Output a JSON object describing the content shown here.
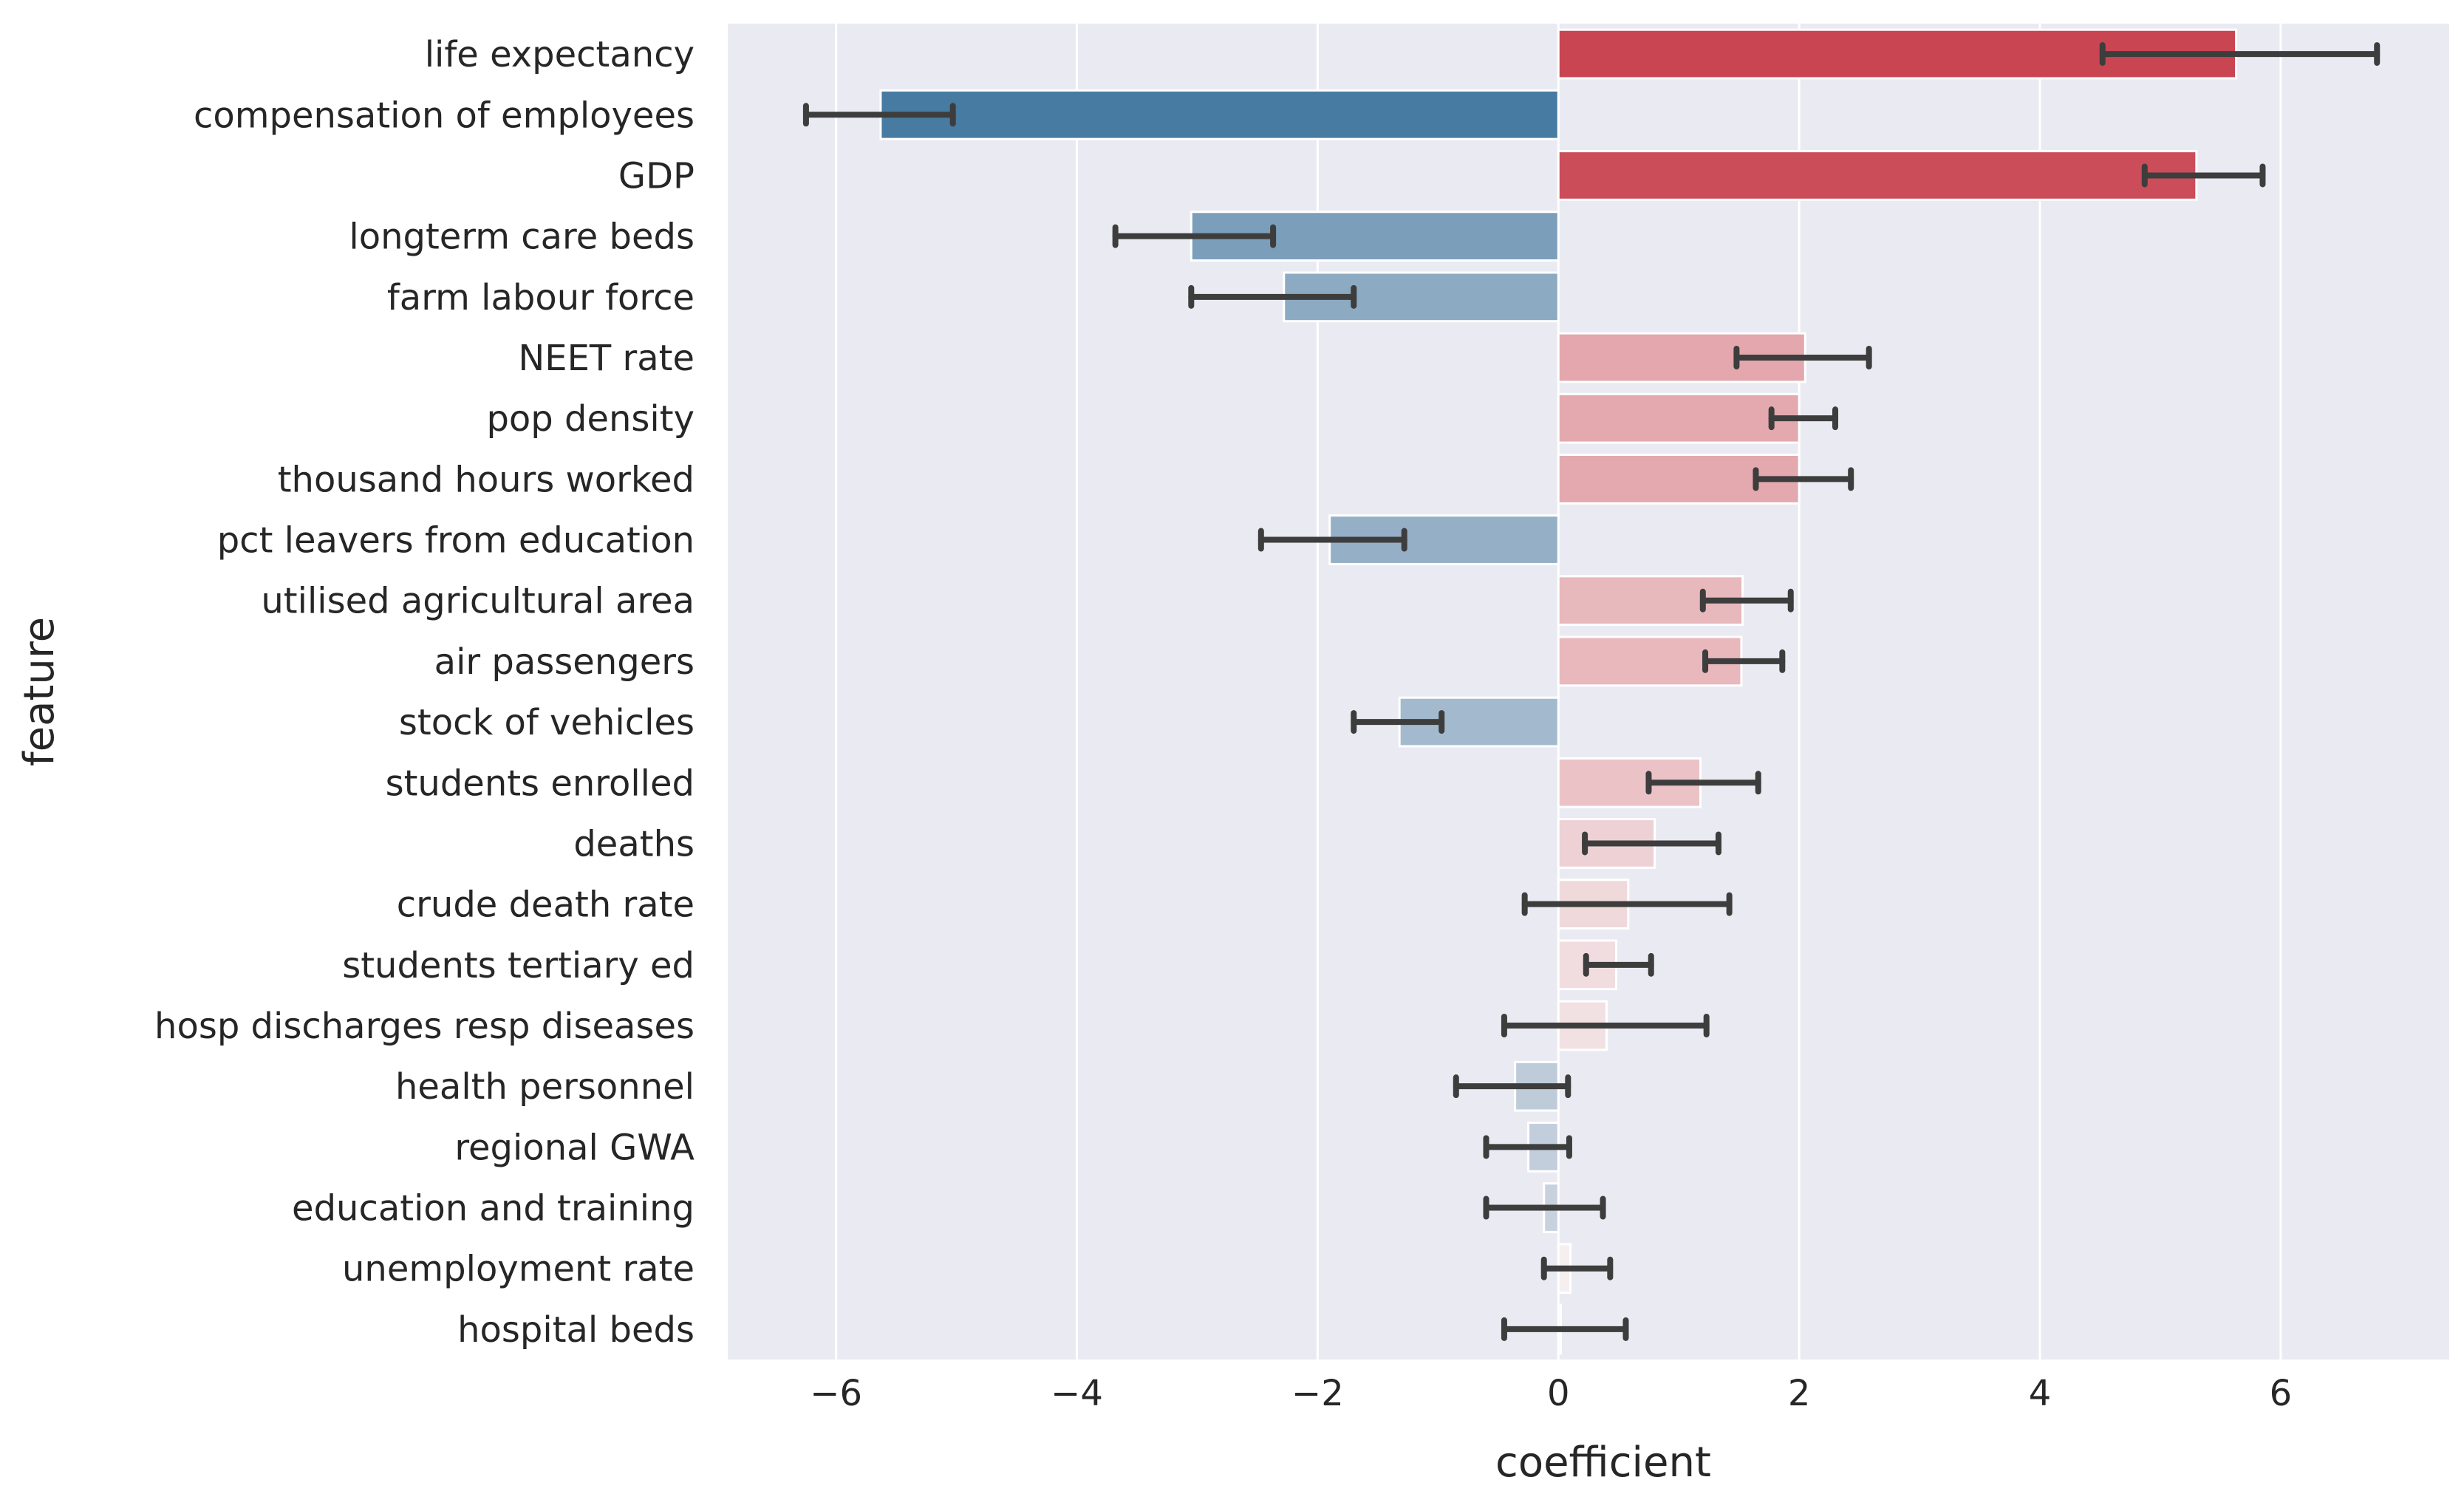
{
  "chart_data": {
    "type": "bar",
    "orientation": "horizontal",
    "xlabel": "coefficient",
    "ylabel": "feature",
    "xlim": [
      -6.9,
      7.4
    ],
    "xticks": [
      -6,
      -4,
      -2,
      0,
      2,
      4,
      6
    ],
    "xtick_labels": [
      "−6",
      "−4",
      "−2",
      "0",
      "2",
      "4",
      "6"
    ],
    "grid": true,
    "background": "#eaeaf2",
    "categories": [
      "life expectancy",
      "compensation of employees",
      "GDP",
      "longterm care beds",
      "farm labour force",
      "NEET rate",
      "pop density",
      "thousand hours worked",
      "pct leavers from education",
      "utilised agricultural area",
      "air passengers",
      "stock of vehicles",
      "students enrolled",
      "deaths",
      "crude death rate",
      "students tertiary ed",
      "hosp discharges resp diseases",
      "health personnel",
      "regional GWA",
      "education and training",
      "unemployment rate",
      "hospital beds"
    ],
    "values": [
      5.63,
      -5.63,
      5.3,
      -3.05,
      -2.28,
      2.05,
      2.0,
      2.0,
      -1.9,
      1.53,
      1.52,
      -1.32,
      1.18,
      0.8,
      0.58,
      0.48,
      0.4,
      -0.36,
      -0.25,
      -0.12,
      0.1,
      0.02
    ],
    "error_low": [
      4.52,
      -6.25,
      4.87,
      -3.68,
      -3.05,
      1.48,
      1.77,
      1.64,
      -2.47,
      1.2,
      1.22,
      -1.7,
      0.75,
      0.22,
      -0.28,
      0.23,
      -0.45,
      -0.85,
      -0.6,
      -0.6,
      -0.12,
      -0.45
    ],
    "error_high": [
      6.8,
      -5.03,
      5.85,
      -2.37,
      -1.7,
      2.58,
      2.3,
      2.43,
      -1.28,
      1.93,
      1.86,
      -0.97,
      1.66,
      1.33,
      1.42,
      0.77,
      1.23,
      0.08,
      0.09,
      0.37,
      0.43,
      0.56
    ],
    "colors": {
      "positive_max": "#c94552",
      "positive_min": "#f8f6f6",
      "negative_max": "#477ba1",
      "negative_min": "#cdd6e1",
      "errorbar": "#3d3d3d",
      "grid": "#ffffff"
    }
  }
}
